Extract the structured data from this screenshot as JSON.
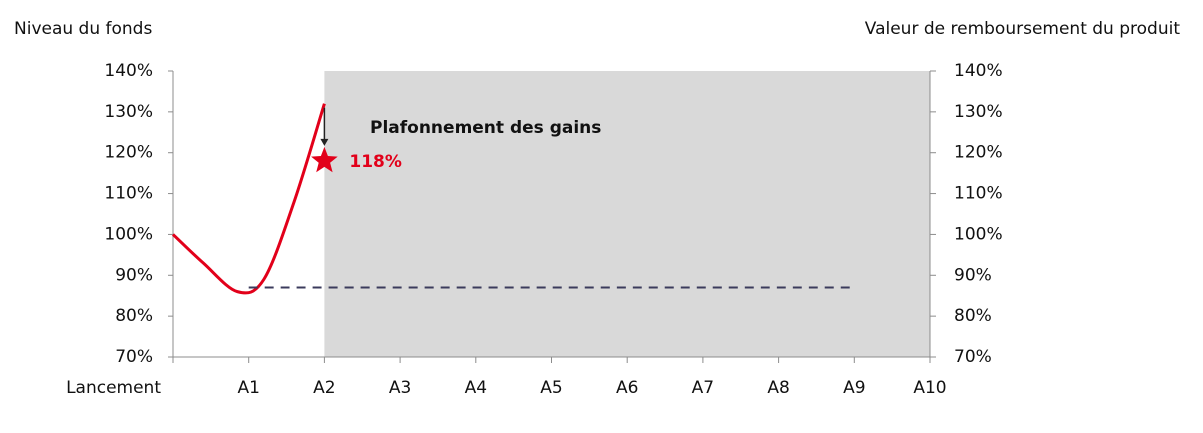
{
  "chart_data": {
    "type": "line",
    "y_label": "Niveau du fonds",
    "y2_label": "Valeur de remboursement du produit",
    "xlim": [
      0,
      10
    ],
    "xticks": [
      {
        "value": 0,
        "label": "Lancement"
      },
      {
        "value": 1,
        "label": "A1"
      },
      {
        "value": 2,
        "label": "A2"
      },
      {
        "value": 3,
        "label": "A3"
      },
      {
        "value": 4,
        "label": "A4"
      },
      {
        "value": 5,
        "label": "A5"
      },
      {
        "value": 6,
        "label": "A6"
      },
      {
        "value": 7,
        "label": "A7"
      },
      {
        "value": 8,
        "label": "A8"
      },
      {
        "value": 9,
        "label": "A9"
      },
      {
        "value": 10,
        "label": "A10"
      }
    ],
    "ylim": [
      70,
      140
    ],
    "yticks": [
      {
        "value": 70,
        "label": "70%"
      },
      {
        "value": 80,
        "label": "80%"
      },
      {
        "value": 90,
        "label": "90%"
      },
      {
        "value": 100,
        "label": "100%"
      },
      {
        "value": 110,
        "label": "110%"
      },
      {
        "value": 120,
        "label": "120%"
      },
      {
        "value": 130,
        "label": "130%"
      },
      {
        "value": 140,
        "label": "140%"
      }
    ],
    "y2lim": [
      70,
      140
    ],
    "y2ticks": [
      {
        "value": 70,
        "label": "70%"
      },
      {
        "value": 80,
        "label": "80%"
      },
      {
        "value": 90,
        "label": "90%"
      },
      {
        "value": 100,
        "label": "100%"
      },
      {
        "value": 110,
        "label": "110%"
      },
      {
        "value": 120,
        "label": "120%"
      },
      {
        "value": 130,
        "label": "130%"
      },
      {
        "value": 140,
        "label": "140%"
      }
    ],
    "shaded_region": {
      "x": [
        2,
        10
      ],
      "color": "#d9d9d9"
    },
    "series": [
      {
        "color": "#e2001a",
        "x": [
          0,
          0.4,
          0.85,
          1.2,
          1.6,
          2
        ],
        "values": [
          100,
          93,
          86,
          89,
          108,
          132
        ]
      },
      {
        "color": "#3b3b5c",
        "dashed": true,
        "x": [
          1,
          9
        ],
        "values": [
          87,
          87
        ]
      }
    ],
    "marker": {
      "x": 2,
      "value": 118,
      "label": "118%",
      "color": "#e2001a"
    },
    "annotation": "Plafonnement des gains"
  }
}
